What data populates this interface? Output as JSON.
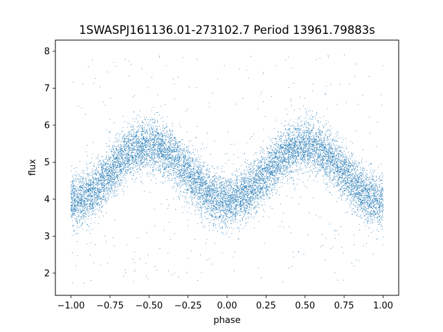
{
  "chart_data": {
    "type": "scatter",
    "title": "1SWASPJ161136.01-273102.7 Period 13961.79883s",
    "xlabel": "phase",
    "ylabel": "flux",
    "xlim": [
      -1.1,
      1.1
    ],
    "ylim": [
      1.4,
      8.3
    ],
    "x_ticks": [
      -1.0,
      -0.75,
      -0.5,
      -0.25,
      0.0,
      0.25,
      0.5,
      0.75,
      1.0
    ],
    "x_tick_labels": [
      "−1.00",
      "−0.75",
      "−0.50",
      "−0.25",
      "0.00",
      "0.25",
      "0.50",
      "0.75",
      "1.00"
    ],
    "y_ticks": [
      2,
      3,
      4,
      5,
      6,
      7,
      8
    ],
    "y_tick_labels": [
      "2",
      "3",
      "4",
      "5",
      "6",
      "7",
      "8"
    ],
    "grid": false,
    "marker_color": "#1f77b4",
    "series": [
      {
        "x_range": [
          -1.0,
          1.0
        ],
        "point_count": 12000,
        "trend": "sinusoid, period 1.0 in phase",
        "min_flux_at_phase": [
          -1.0,
          0.0,
          1.0
        ],
        "min_flux": 3.95,
        "max_flux_at_phase": [
          -0.5,
          0.5
        ],
        "max_flux": 5.45,
        "scatter_sd": 0.35,
        "outlier_range": [
          1.7,
          7.9
        ]
      }
    ]
  }
}
